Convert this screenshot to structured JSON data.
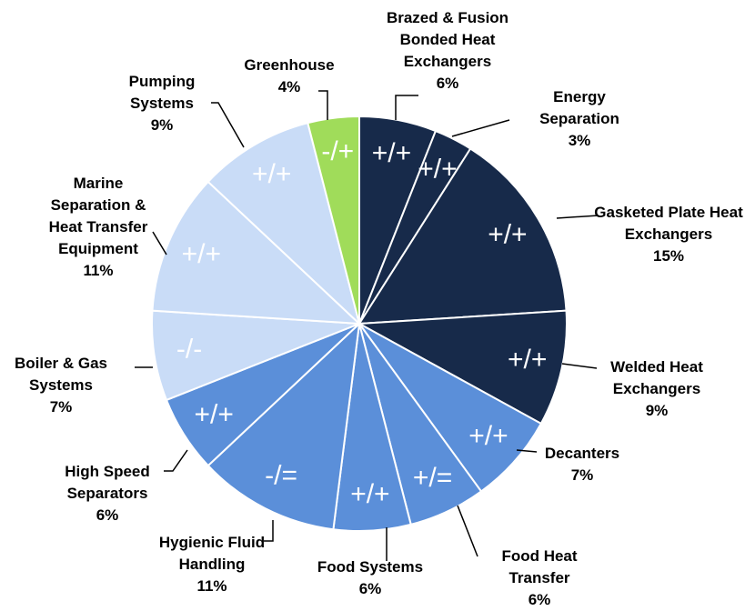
{
  "chart_data": {
    "type": "pie",
    "categories": [
      "Brazed & Fusion Bonded Heat Exchangers",
      "Energy Separation",
      "Gasketed Plate Heat Exchangers",
      "Welded Heat Exchangers",
      "Decanters",
      "Food Heat Transfer",
      "Food Systems",
      "Hygienic Fluid Handling",
      "High Speed Separators",
      "Boiler & Gas Systems",
      "Marine Separation & Heat Transfer Equipment",
      "Pumping Systems",
      "Greenhouse"
    ],
    "values": [
      6,
      3,
      15,
      9,
      7,
      6,
      6,
      11,
      6,
      7,
      11,
      9,
      4
    ],
    "value_labels": [
      "6%",
      "3%",
      "15%",
      "9%",
      "7%",
      "6%",
      "6%",
      "11%",
      "6%",
      "7%",
      "11%",
      "9%",
      "4%"
    ],
    "slice_labels": [
      "+/+",
      "+/+",
      "+/+",
      "+/+",
      "+/+",
      "+/=",
      "+/+",
      "-/=",
      "+/+",
      "-/-",
      "+/+",
      "+/+",
      "-/+"
    ],
    "colors": [
      "#172a4a",
      "#172a4a",
      "#172a4a",
      "#172a4a",
      "#5b8fd9",
      "#5b8fd9",
      "#5b8fd9",
      "#5b8fd9",
      "#5b8fd9",
      "#c9dcf7",
      "#c9dcf7",
      "#c9dcf7",
      "#a0dc5a"
    ]
  }
}
